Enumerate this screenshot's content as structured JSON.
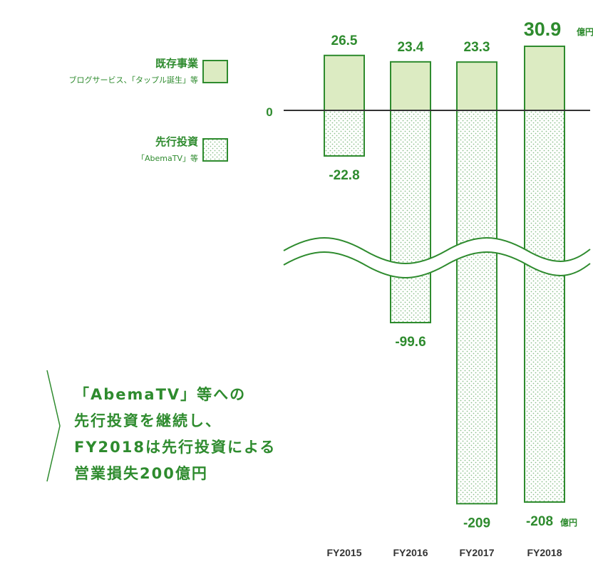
{
  "colors": {
    "green": "#2e8b2e",
    "light_green": "#dcebc2",
    "dot_green": "#8cc08c",
    "axis": "#333333"
  },
  "legend": {
    "existing": {
      "title": "既存事業",
      "sub": "ブログサービス、「タップル誕生」等"
    },
    "investment": {
      "title": "先行投資",
      "sub": "「AbemaTV」等"
    }
  },
  "callout": {
    "lines": [
      "「AbemaTV」等への",
      "先行投資を継続し、",
      "FY2018は先行投資による",
      "営業損失200億円"
    ]
  },
  "chart_data": {
    "type": "bar",
    "categories": [
      "FY2015",
      "FY2016",
      "FY2017",
      "FY2018"
    ],
    "series": [
      {
        "name": "既存事業",
        "values": [
          26.5,
          23.4,
          23.3,
          30.9
        ]
      },
      {
        "name": "先行投資",
        "values": [
          -22.8,
          -99.6,
          -209,
          -208
        ]
      }
    ],
    "value_labels": {
      "positive": [
        "26.5",
        "23.4",
        "23.3",
        "30.9"
      ],
      "negative": [
        "-22.8",
        "-99.6",
        "-209",
        "-208"
      ]
    },
    "unit": "億円",
    "zero_label": "0",
    "axis_break": true
  }
}
